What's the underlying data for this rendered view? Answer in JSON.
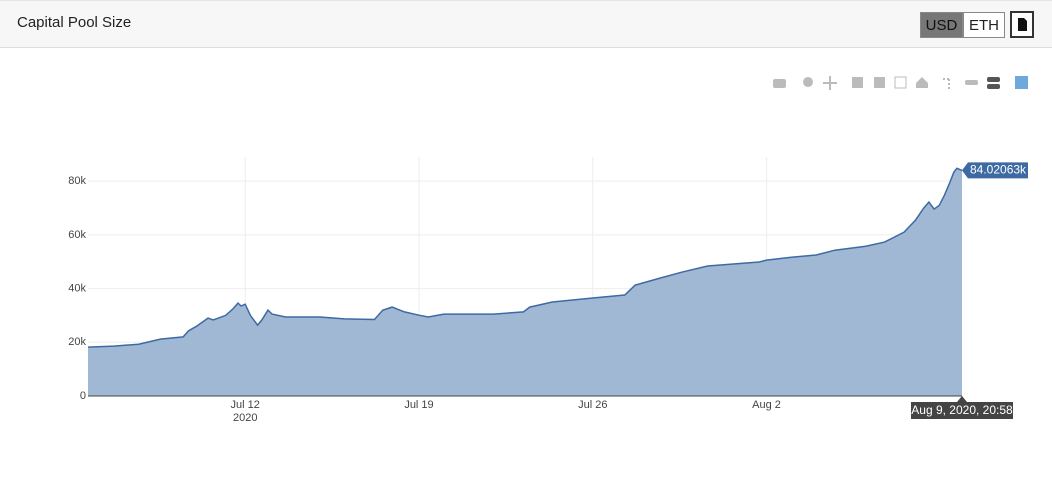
{
  "header": {
    "title": "Capital Pool Size",
    "buttons": [
      "USD",
      "ETH"
    ],
    "active_button": 0
  },
  "chart_data": {
    "type": "area",
    "x": [
      "2020-07-05T16:00",
      "2020-07-06T17:00",
      "2020-07-07T17:00",
      "2020-07-08T14:00",
      "2020-07-09T12:00",
      "2020-07-09T17:00",
      "2020-07-10T01:00",
      "2020-07-10T12:00",
      "2020-07-10T17:00",
      "2020-07-11T05:00",
      "2020-07-11T12:00",
      "2020-07-11T17:00",
      "2020-07-11T20:00",
      "2020-07-12T00:00",
      "2020-07-12T05:00",
      "2020-07-12T12:00",
      "2020-07-12T16:00",
      "2020-07-12T22:00",
      "2020-07-13T02:00",
      "2020-07-13T15:00",
      "2020-07-15T00:00",
      "2020-07-16T00:00",
      "2020-07-17T05:00",
      "2020-07-17T13:00",
      "2020-07-17T22:00",
      "2020-07-18T10:00",
      "2020-07-19T00:00",
      "2020-07-19T09:00",
      "2020-07-20T00:00",
      "2020-07-22T00:00",
      "2020-07-23T05:00",
      "2020-07-23T11:00",
      "2020-07-24T09:00",
      "2020-07-26T00:00",
      "2020-07-27T07:00",
      "2020-07-27T17:00",
      "2020-07-28T17:00",
      "2020-07-29T14:00",
      "2020-07-30T15:00",
      "2020-08-01T17:00",
      "2020-08-02T00:00",
      "2020-08-03T00:00",
      "2020-08-04T00:00",
      "2020-08-04T18:00",
      "2020-08-06T00:00",
      "2020-08-06T18:00",
      "2020-08-07T13:00",
      "2020-08-08T00:00",
      "2020-08-08T08:00",
      "2020-08-08T13:00",
      "2020-08-08T18:00",
      "2020-08-08T23:00",
      "2020-08-09T04:00",
      "2020-08-09T09:00",
      "2020-08-09T13:00",
      "2020-08-09T16:00",
      "2020-08-09T20:58"
    ],
    "series": [
      {
        "color": "#3d6aa3",
        "fill": "#a0b8d4",
        "values": [
          18200,
          18600,
          19300,
          21200,
          22000,
          24200,
          26000,
          29000,
          28300,
          30000,
          32400,
          34600,
          33500,
          34200,
          30000,
          26400,
          28300,
          32000,
          30500,
          29400,
          29400,
          28700,
          28500,
          32000,
          33100,
          31300,
          30100,
          29400,
          30500,
          30500,
          31300,
          33100,
          35000,
          36500,
          37600,
          41300,
          43900,
          46100,
          48400,
          49900,
          50600,
          51700,
          52500,
          54300,
          55800,
          57300,
          61000,
          65500,
          70000,
          72200,
          69600,
          71000,
          74800,
          79300,
          83300,
          84800,
          84020.63
        ]
      }
    ],
    "xlim": [
      "2020-07-05T16:00",
      "2020-08-09T20:58"
    ],
    "xticks": [
      {
        "value": "2020-07-12",
        "label": "Jul 12",
        "label2": "2020"
      },
      {
        "value": "2020-07-19",
        "label": "Jul 19"
      },
      {
        "value": "2020-07-26",
        "label": "Jul 26"
      },
      {
        "value": "2020-08-02",
        "label": "Aug 2"
      }
    ],
    "ylim": [
      0,
      89000
    ],
    "yticks": [
      0,
      {
        "value": 20000,
        "label": "20k"
      },
      {
        "value": 40000,
        "label": "40k"
      },
      {
        "value": 60000,
        "label": "60k"
      },
      {
        "value": 80000,
        "label": "80k"
      }
    ],
    "grid": true,
    "hover": {
      "x": "2020-08-09T20:58",
      "x_label": "Aug 9, 2020, 20:58",
      "value": 84020.63,
      "value_label": "84.02063k"
    }
  }
}
